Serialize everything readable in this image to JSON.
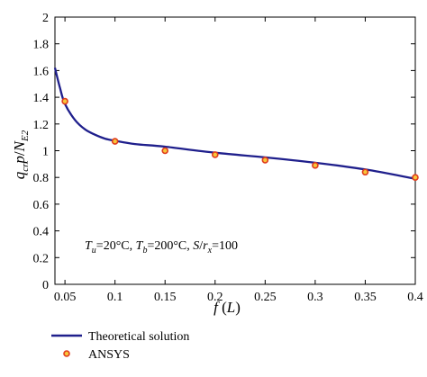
{
  "chart_data": {
    "type": "line",
    "title": "",
    "xlabel": "f (L)",
    "ylabel": "q_cr p / N_E2",
    "xlim": [
      0.04,
      0.4
    ],
    "ylim": [
      0,
      2
    ],
    "x_ticks": [
      0.05,
      0.1,
      0.15,
      0.2,
      0.25,
      0.3,
      0.35,
      0.4
    ],
    "x_tick_labels": [
      "0.05",
      "0.1",
      "0.15",
      "0.2",
      "0.25",
      "0.3",
      "0.35",
      "0.4"
    ],
    "y_ticks": [
      0,
      0.2,
      0.4,
      0.6,
      0.8,
      1,
      1.2,
      1.4,
      1.6,
      1.8,
      2
    ],
    "y_tick_labels": [
      "0",
      "0.2",
      "0.4",
      "0.6",
      "0.8",
      "1",
      "1.2",
      "1.4",
      "1.6",
      "1.8",
      "2"
    ],
    "grid": false,
    "legend_position": "below",
    "annotation": "T_u=20°C, T_b=200°C, S/r_x=100",
    "series": [
      {
        "name": "Theoretical solution",
        "style": "line",
        "color": "#1f1f8c",
        "x": [
          0.04,
          0.045,
          0.05,
          0.06,
          0.07,
          0.08,
          0.09,
          0.1,
          0.12,
          0.15,
          0.2,
          0.25,
          0.3,
          0.35,
          0.4
        ],
        "y": [
          1.62,
          1.47,
          1.35,
          1.23,
          1.16,
          1.12,
          1.09,
          1.075,
          1.05,
          1.03,
          0.985,
          0.95,
          0.91,
          0.86,
          0.79
        ]
      },
      {
        "name": "ANSYS",
        "style": "marker",
        "color": "#e03c1e",
        "x": [
          0.05,
          0.1,
          0.15,
          0.2,
          0.25,
          0.3,
          0.35,
          0.4
        ],
        "y": [
          1.37,
          1.07,
          1.0,
          0.97,
          0.93,
          0.89,
          0.84,
          0.8
        ]
      }
    ]
  }
}
